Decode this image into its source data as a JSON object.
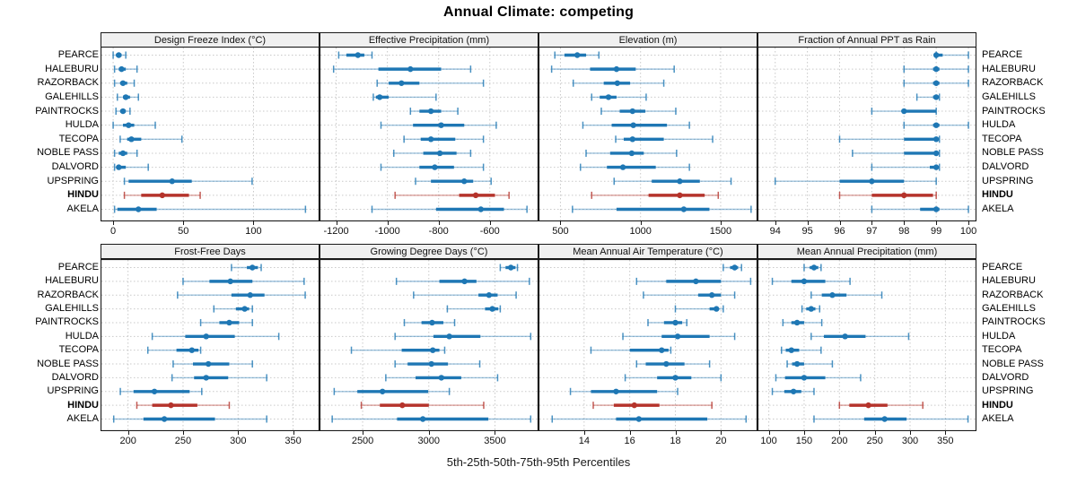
{
  "title": "Annual Climate: competing",
  "caption": "5th-25th-50th-75th-95th Percentiles",
  "highlight_site": "HINDU",
  "colors": {
    "series": "#1E77B4",
    "highlight": "#B5332B",
    "grid": "#c9c9c9",
    "strip_bg": "#f0f0f0",
    "border": "#1a1a1a"
  },
  "chart_data": {
    "type": "dotplot-interval",
    "percentiles": [
      5,
      25,
      50,
      75,
      95
    ],
    "legend_note": "thin line = 5th-95th, thick line = 25th-75th, dot = 50th percentile",
    "sites": [
      "PEARCE",
      "HALEBURU",
      "RAZORBACK",
      "GALEHILLS",
      "PAINTROCKS",
      "HULDA",
      "TECOPA",
      "NOBLE PASS",
      "DALVORD",
      "UPSPRING",
      "HINDU",
      "AKELA"
    ],
    "panels": [
      {
        "title": "Design Freeze Index (°C)",
        "xlim": [
          -9,
          147
        ],
        "ticks": [
          0,
          50,
          100
        ],
        "tick_labels": [
          "0",
          "50",
          "100"
        ],
        "values": [
          [
            0,
            2,
            4,
            6,
            9
          ],
          [
            1,
            4,
            6,
            9,
            17
          ],
          [
            1,
            5,
            7,
            10,
            15
          ],
          [
            3,
            7,
            9,
            12,
            18
          ],
          [
            2,
            5,
            7,
            9,
            12
          ],
          [
            0,
            7,
            11,
            15,
            30
          ],
          [
            5,
            10,
            13,
            20,
            49
          ],
          [
            1,
            4,
            7,
            10,
            17
          ],
          [
            1,
            3,
            4,
            9,
            25
          ],
          [
            8,
            11,
            42,
            56,
            99
          ],
          [
            8,
            20,
            35,
            54,
            62
          ],
          [
            1,
            3,
            18,
            31,
            137
          ]
        ]
      },
      {
        "title": "Effective Precipitation (mm)",
        "xlim": [
          -1265,
          -410
        ],
        "ticks": [
          -1200,
          -1000,
          -800,
          -600
        ],
        "tick_labels": [
          "-1200",
          "-1000",
          "-800",
          "-600"
        ],
        "values": [
          [
            -1190,
            -1160,
            -1115,
            -1090,
            -1060
          ],
          [
            -1210,
            -1035,
            -910,
            -790,
            -675
          ],
          [
            -1040,
            -995,
            -945,
            -875,
            -625
          ],
          [
            -1055,
            -1045,
            -1030,
            -995,
            -810
          ],
          [
            -910,
            -875,
            -830,
            -790,
            -725
          ],
          [
            -1025,
            -900,
            -790,
            -700,
            -575
          ],
          [
            -935,
            -870,
            -830,
            -735,
            -625
          ],
          [
            -975,
            -860,
            -795,
            -730,
            -675
          ],
          [
            -1025,
            -875,
            -815,
            -740,
            -625
          ],
          [
            -890,
            -830,
            -700,
            -665,
            -595
          ],
          [
            -970,
            -720,
            -655,
            -580,
            -525
          ],
          [
            -1060,
            -810,
            -635,
            -545,
            -455
          ]
        ]
      },
      {
        "title": "Elevation (m)",
        "xlim": [
          363,
          1730
        ],
        "ticks": [
          500,
          1000,
          1500
        ],
        "tick_labels": [
          "500",
          "1000",
          "1500"
        ],
        "values": [
          [
            465,
            525,
            605,
            660,
            740
          ],
          [
            445,
            685,
            850,
            970,
            1210
          ],
          [
            580,
            770,
            855,
            935,
            1145
          ],
          [
            695,
            745,
            800,
            850,
            1035
          ],
          [
            755,
            870,
            950,
            1030,
            1220
          ],
          [
            640,
            820,
            955,
            1165,
            1305
          ],
          [
            845,
            895,
            950,
            1145,
            1450
          ],
          [
            660,
            810,
            945,
            1020,
            1225
          ],
          [
            625,
            790,
            890,
            1095,
            1305
          ],
          [
            835,
            1070,
            1245,
            1370,
            1565
          ],
          [
            695,
            1050,
            1245,
            1400,
            1485
          ],
          [
            575,
            850,
            1270,
            1430,
            1690
          ]
        ]
      },
      {
        "title": "Fraction of Annual PPT as Rain",
        "xlim": [
          93.45,
          100.25
        ],
        "ticks": [
          94,
          95,
          96,
          97,
          98,
          99,
          100
        ],
        "tick_labels": [
          "94",
          "95",
          "96",
          "97",
          "98",
          "99",
          "100"
        ],
        "values": [
          [
            99,
            99,
            99,
            99.2,
            100
          ],
          [
            98,
            98.9,
            99,
            99.1,
            100
          ],
          [
            98,
            98.9,
            99,
            99.1,
            100
          ],
          [
            98.4,
            98.9,
            99,
            99,
            99.1
          ],
          [
            97,
            98,
            98,
            99,
            99
          ],
          [
            98,
            98.9,
            99,
            99.1,
            100
          ],
          [
            96,
            98,
            99,
            99,
            99.1
          ],
          [
            96.4,
            98,
            99,
            99,
            99.1
          ],
          [
            97,
            98.8,
            99,
            99,
            99.1
          ],
          [
            94,
            96,
            97,
            98,
            99
          ],
          [
            96,
            97,
            98,
            98.9,
            99
          ],
          [
            97,
            98.5,
            99,
            99.1,
            100
          ]
        ]
      },
      {
        "title": "Frost-Free Days",
        "xlim": [
          175,
          374
        ],
        "ticks": [
          200,
          250,
          300,
          350
        ],
        "tick_labels": [
          "200",
          "250",
          "300",
          "350"
        ],
        "values": [
          [
            294,
            308,
            313,
            318,
            321
          ],
          [
            250,
            274,
            293,
            313,
            360
          ],
          [
            245,
            294,
            311,
            324,
            361
          ],
          [
            278,
            298,
            306,
            310,
            313
          ],
          [
            266,
            283,
            292,
            301,
            313
          ],
          [
            222,
            252,
            271,
            297,
            337
          ],
          [
            218,
            244,
            258,
            264,
            266
          ],
          [
            241,
            259,
            273,
            292,
            313
          ],
          [
            240,
            260,
            271,
            291,
            326
          ],
          [
            193,
            205,
            224,
            256,
            267
          ],
          [
            208,
            222,
            239,
            263,
            292
          ],
          [
            187,
            214,
            233,
            279,
            326
          ]
        ]
      },
      {
        "title": "Growing Degree Days (°C)",
        "xlim": [
          2174,
          3829
        ],
        "ticks": [
          2500,
          3000,
          3500
        ],
        "tick_labels": [
          "2500",
          "3000",
          "3500"
        ],
        "values": [
          [
            3540,
            3580,
            3620,
            3655,
            3670
          ],
          [
            2755,
            3080,
            3270,
            3360,
            3760
          ],
          [
            2885,
            3375,
            3455,
            3520,
            3660
          ],
          [
            3140,
            3425,
            3480,
            3525,
            3540
          ],
          [
            2815,
            2945,
            3025,
            3110,
            3195
          ],
          [
            2745,
            3035,
            3155,
            3390,
            3770
          ],
          [
            2415,
            2795,
            3030,
            3080,
            3120
          ],
          [
            2745,
            2840,
            3020,
            3145,
            3385
          ],
          [
            2675,
            2900,
            3095,
            3245,
            3520
          ],
          [
            2285,
            2460,
            2650,
            2995,
            3155
          ],
          [
            2490,
            2630,
            2800,
            3000,
            3415
          ],
          [
            2270,
            2760,
            2955,
            3450,
            3770
          ]
        ]
      },
      {
        "title": "Mean Annual Air Temperature (°C)",
        "xlim": [
          12.0,
          21.6
        ],
        "ticks": [
          14,
          16,
          18,
          20
        ],
        "tick_labels": [
          "14",
          "16",
          "18",
          "20"
        ],
        "values": [
          [
            20.1,
            20.4,
            20.6,
            20.75,
            20.9
          ],
          [
            16.3,
            17.6,
            18.9,
            20.0,
            21.3
          ],
          [
            16.6,
            19.0,
            19.6,
            20.0,
            20.6
          ],
          [
            18.0,
            19.5,
            19.8,
            19.9,
            20.1
          ],
          [
            16.8,
            17.5,
            18.0,
            18.3,
            18.5
          ],
          [
            15.7,
            17.4,
            18.1,
            19.5,
            20.6
          ],
          [
            14.3,
            16.0,
            17.4,
            17.7,
            17.8
          ],
          [
            16.3,
            16.7,
            17.6,
            18.4,
            19.5
          ],
          [
            15.8,
            17.2,
            18.0,
            18.7,
            20.0
          ],
          [
            13.4,
            14.3,
            15.4,
            17.2,
            18.1
          ],
          [
            14.4,
            15.3,
            16.2,
            17.3,
            19.6
          ],
          [
            12.6,
            15.4,
            16.4,
            19.4,
            21.1
          ]
        ]
      },
      {
        "title": "Mean Annual Precipitation (mm)",
        "xlim": [
          84,
          394
        ],
        "ticks": [
          100,
          150,
          200,
          250,
          300,
          350
        ],
        "tick_labels": [
          "100",
          "150",
          "200",
          "250",
          "300",
          "350"
        ],
        "values": [
          [
            150,
            158,
            164,
            170,
            174
          ],
          [
            105,
            132,
            150,
            180,
            215
          ],
          [
            160,
            175,
            190,
            210,
            260
          ],
          [
            147,
            153,
            160,
            166,
            172
          ],
          [
            120,
            132,
            140,
            150,
            175
          ],
          [
            160,
            178,
            208,
            237,
            298
          ],
          [
            118,
            124,
            132,
            143,
            174
          ],
          [
            126,
            133,
            140,
            150,
            190
          ],
          [
            110,
            123,
            150,
            180,
            230
          ],
          [
            105,
            122,
            135,
            146,
            164
          ],
          [
            200,
            214,
            241,
            268,
            318
          ],
          [
            164,
            235,
            264,
            295,
            382
          ]
        ]
      }
    ]
  }
}
